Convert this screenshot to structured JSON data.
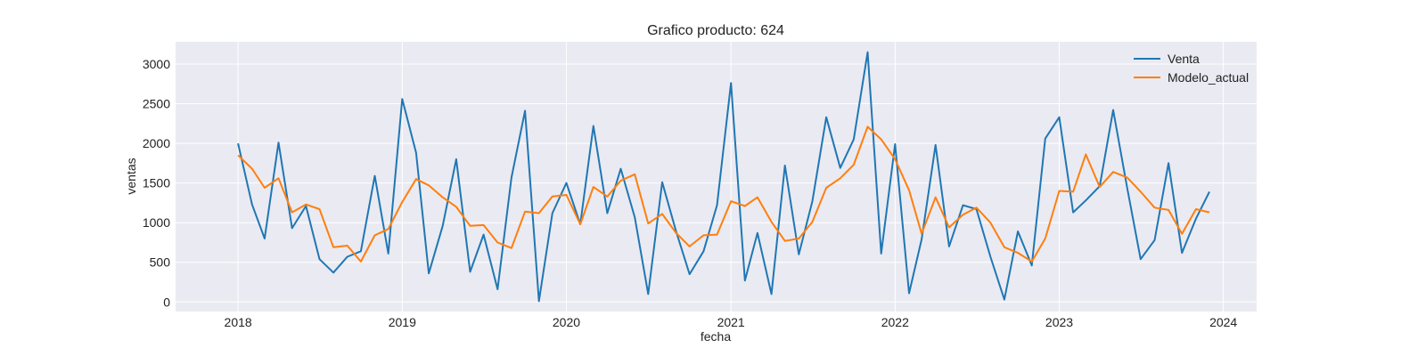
{
  "chart_data": {
    "type": "line",
    "title": "Grafico producto: 624",
    "xlabel": "fecha",
    "ylabel": "ventas",
    "xlim": [
      "2017-08-15",
      "2024-03-15"
    ],
    "ylim": [
      -120,
      3280
    ],
    "x_ticks": [
      "2018-01-01",
      "2019-01-01",
      "2020-01-01",
      "2021-01-01",
      "2022-01-01",
      "2023-01-01",
      "2024-01-01"
    ],
    "x_tick_labels": [
      "2018",
      "2019",
      "2020",
      "2021",
      "2022",
      "2023",
      "2024"
    ],
    "y_ticks": [
      0,
      500,
      1000,
      1500,
      2000,
      2500,
      3000
    ],
    "y_tick_labels": [
      "0",
      "500",
      "1000",
      "1500",
      "2000",
      "2500",
      "3000"
    ],
    "grid": true,
    "background": "#eaeaf2",
    "legend": "top-right",
    "x": [
      "2018-01",
      "2018-02",
      "2018-03",
      "2018-04",
      "2018-05",
      "2018-06",
      "2018-07",
      "2018-08",
      "2018-09",
      "2018-10",
      "2018-11",
      "2018-12",
      "2019-01",
      "2019-02",
      "2019-03",
      "2019-04",
      "2019-05",
      "2019-06",
      "2019-07",
      "2019-08",
      "2019-09",
      "2019-10",
      "2019-11",
      "2019-12",
      "2020-01",
      "2020-02",
      "2020-03",
      "2020-04",
      "2020-05",
      "2020-06",
      "2020-07",
      "2020-08",
      "2020-09",
      "2020-10",
      "2020-11",
      "2020-12",
      "2021-01",
      "2021-02",
      "2021-03",
      "2021-04",
      "2021-05",
      "2021-06",
      "2021-07",
      "2021-08",
      "2021-09",
      "2021-10",
      "2021-11",
      "2021-12",
      "2022-01",
      "2022-02",
      "2022-03",
      "2022-04",
      "2022-05",
      "2022-06",
      "2022-07",
      "2022-08",
      "2022-09",
      "2022-10",
      "2022-11",
      "2022-12",
      "2023-01",
      "2023-02",
      "2023-03",
      "2023-04",
      "2023-05",
      "2023-06",
      "2023-07",
      "2023-08",
      "2023-09",
      "2023-10",
      "2023-11",
      "2023-12"
    ],
    "series": [
      {
        "name": "Venta",
        "color": "#1f77b4",
        "values": [
          2000,
          1230,
          800,
          2010,
          930,
          1210,
          540,
          370,
          570,
          640,
          1590,
          610,
          2560,
          1880,
          360,
          960,
          1800,
          380,
          850,
          160,
          1570,
          2410,
          10,
          1120,
          1500,
          980,
          2220,
          1120,
          1680,
          1070,
          100,
          1510,
          890,
          350,
          640,
          1220,
          2760,
          270,
          870,
          100,
          1720,
          600,
          1270,
          2330,
          1690,
          2050,
          3150,
          610,
          1990,
          110,
          790,
          1980,
          700,
          1220,
          1170,
          570,
          30,
          890,
          460,
          2060,
          2330,
          1130,
          1280,
          1460,
          2420,
          1440,
          540,
          780,
          1750,
          620,
          1050,
          1390
        ]
      },
      {
        "name": "Modelo_actual",
        "color": "#ff7f0e",
        "values": [
          1850,
          1680,
          1440,
          1560,
          1130,
          1230,
          1170,
          690,
          710,
          510,
          840,
          920,
          1260,
          1550,
          1470,
          1320,
          1200,
          960,
          970,
          750,
          680,
          1140,
          1120,
          1330,
          1350,
          980,
          1450,
          1330,
          1530,
          1610,
          990,
          1110,
          870,
          700,
          840,
          850,
          1270,
          1210,
          1320,
          1010,
          770,
          800,
          1010,
          1440,
          1560,
          1730,
          2210,
          2050,
          1800,
          1410,
          860,
          1320,
          940,
          1100,
          1190,
          1000,
          690,
          620,
          510,
          800,
          1400,
          1390,
          1860,
          1450,
          1640,
          1570,
          1390,
          1190,
          1160,
          860,
          1170,
          1130
        ]
      }
    ]
  }
}
